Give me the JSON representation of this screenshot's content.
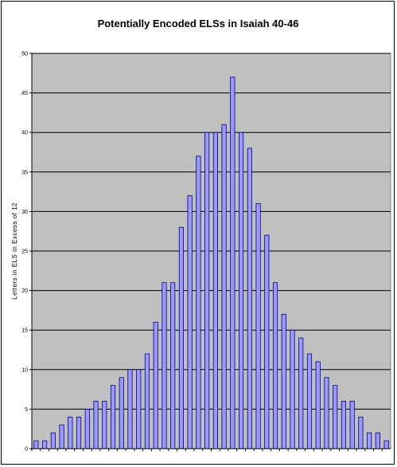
{
  "chart_data": {
    "type": "bar",
    "title": "Potentially Encoded ELSs in Isaiah 40-46",
    "xlabel": "",
    "ylabel": "Letters in ELS in Excess of 12",
    "ylim": [
      0,
      50
    ],
    "yticks": [
      0,
      5,
      10,
      15,
      20,
      25,
      30,
      35,
      40,
      45,
      50
    ],
    "grid": true,
    "legend": "none",
    "colors": {
      "plot_background": "#c0c0c0",
      "bar_fill": "#9999ff",
      "bar_stroke": "#000080",
      "gridline": "#000000"
    },
    "values": [
      1,
      1,
      2,
      3,
      4,
      4,
      5,
      6,
      6,
      8,
      9,
      10,
      10,
      12,
      16,
      21,
      21,
      28,
      32,
      37,
      40,
      40,
      41,
      47,
      40,
      38,
      31,
      27,
      21,
      17,
      15,
      14,
      12,
      11,
      9,
      8,
      6,
      6,
      4,
      2,
      2,
      1
    ]
  }
}
